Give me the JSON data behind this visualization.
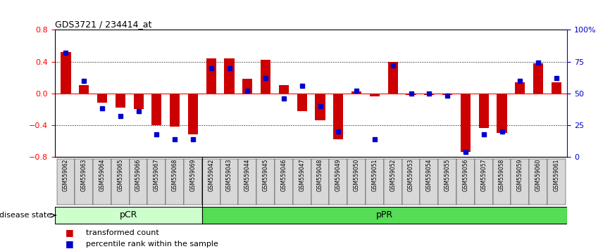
{
  "title": "GDS3721 / 234414_at",
  "samples": [
    "GSM559062",
    "GSM559063",
    "GSM559064",
    "GSM559065",
    "GSM559066",
    "GSM559067",
    "GSM559068",
    "GSM559069",
    "GSM559042",
    "GSM559043",
    "GSM559044",
    "GSM559045",
    "GSM559046",
    "GSM559047",
    "GSM559048",
    "GSM559049",
    "GSM559050",
    "GSM559051",
    "GSM559052",
    "GSM559053",
    "GSM559054",
    "GSM559055",
    "GSM559056",
    "GSM559057",
    "GSM559058",
    "GSM559059",
    "GSM559060",
    "GSM559061"
  ],
  "bar_values": [
    0.52,
    0.1,
    -0.12,
    -0.18,
    -0.2,
    -0.4,
    -0.42,
    -0.52,
    0.44,
    0.44,
    0.18,
    0.42,
    0.1,
    -0.22,
    -0.34,
    -0.58,
    0.02,
    -0.04,
    0.4,
    -0.02,
    -0.02,
    -0.02,
    -0.74,
    -0.44,
    -0.5,
    0.14,
    0.38,
    0.14
  ],
  "percentile_values": [
    82,
    60,
    38,
    32,
    36,
    18,
    14,
    14,
    70,
    70,
    52,
    62,
    46,
    56,
    40,
    20,
    52,
    14,
    72,
    50,
    50,
    48,
    4,
    18,
    20,
    60,
    74,
    62
  ],
  "pCR_count": 8,
  "pPR_count": 20,
  "ylim": [
    -0.8,
    0.8
  ],
  "yticks": [
    -0.8,
    -0.4,
    0.0,
    0.4,
    0.8
  ],
  "bar_color": "#cc0000",
  "dot_color": "#0000cc",
  "pCR_color": "#ccffcc",
  "pPR_color": "#55dd55",
  "right_axis_color": "#0000cc",
  "right_ylabels": [
    "0",
    "25",
    "50",
    "75",
    "100%"
  ],
  "disease_state_label": "disease state",
  "legend_bar_label": "transformed count",
  "legend_dot_label": "percentile rank within the sample",
  "bar_width": 0.55
}
